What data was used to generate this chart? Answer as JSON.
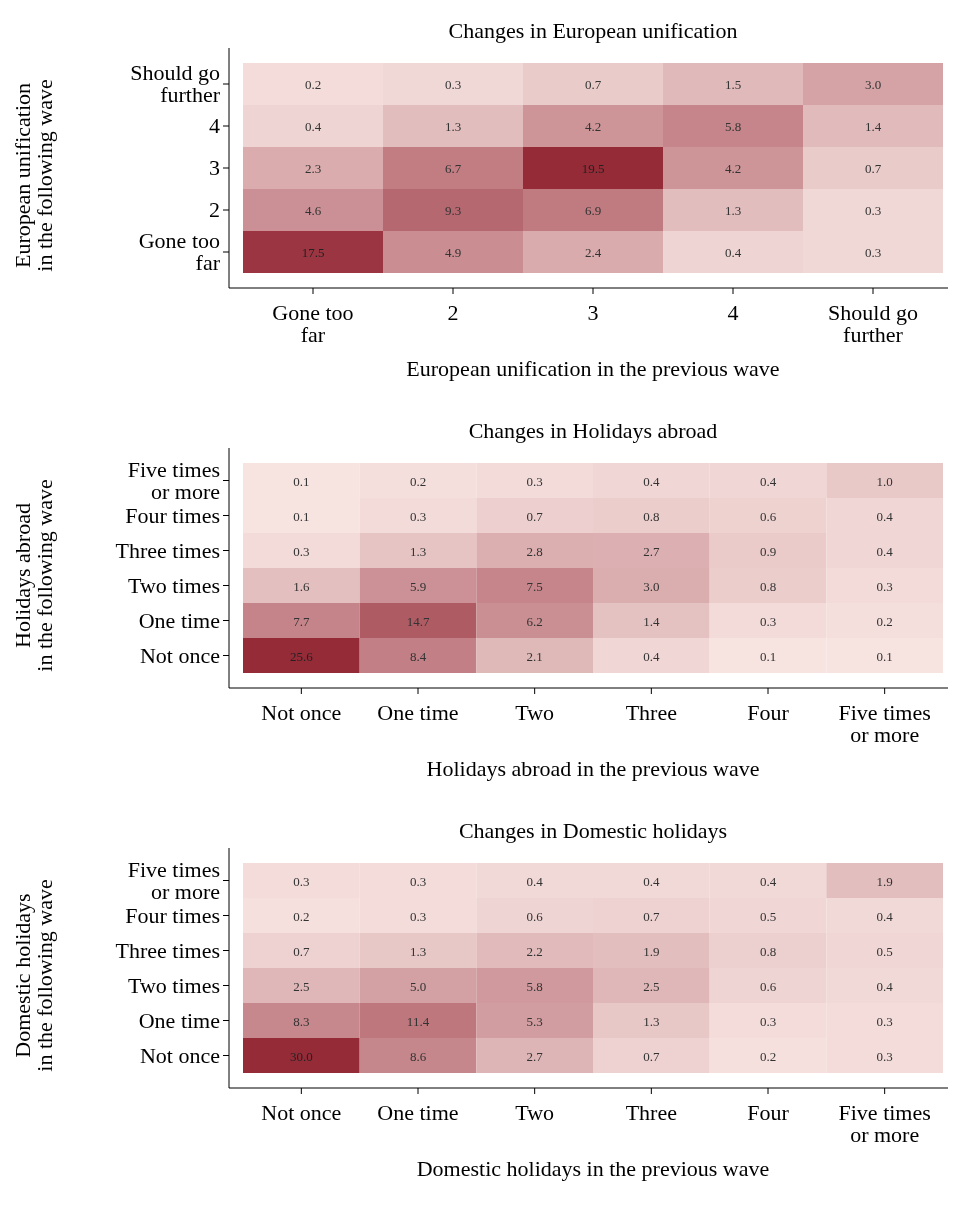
{
  "chart_data": [
    {
      "type": "heatmap",
      "title": "Changes in European unification",
      "xlabel": "European unification in the previous wave",
      "ylabel": "European unification\nin the following wave",
      "color": "#962b38",
      "categories": [
        "Gone too far",
        "2",
        "3",
        "4",
        "Should go further"
      ],
      "y_categories": [
        "Should go further",
        "4",
        "3",
        "2",
        "Gone too far"
      ],
      "cells": [
        [
          0.2,
          0.3,
          0.7,
          1.5,
          3.0
        ],
        [
          0.4,
          1.3,
          4.2,
          5.8,
          1.4
        ],
        [
          2.3,
          6.7,
          19.5,
          4.2,
          0.7
        ],
        [
          4.6,
          9.3,
          6.9,
          1.3,
          0.3
        ],
        [
          17.5,
          4.9,
          2.4,
          0.4,
          0.3
        ]
      ],
      "cell_labels": [
        [
          "0.2",
          "0.3",
          "0.7",
          "1.5",
          "3.0"
        ],
        [
          "0.4",
          "1.3",
          "4.2",
          "5.8",
          "1.4"
        ],
        [
          "2.3",
          "6.7",
          "19.5",
          "4.2",
          "0.7"
        ],
        [
          "4.6",
          "9.3",
          "6.9",
          "1.3",
          "0.3"
        ],
        [
          "17.5",
          "4.9",
          "2.4",
          "0.4",
          "0.3"
        ]
      ]
    },
    {
      "type": "heatmap",
      "title": "Changes in Holidays abroad",
      "xlabel": "Holidays abroad in the previous wave",
      "ylabel": "Holidays abroad\nin the following wave",
      "color": "#962b38",
      "categories": [
        "Not once",
        "One time",
        "Two",
        "Three",
        "Four",
        "Five times or more"
      ],
      "y_categories": [
        "Five times or more",
        "Four times",
        "Three times",
        "Two times",
        "One time",
        "Not once"
      ],
      "cells": [
        [
          0.1,
          0.2,
          0.3,
          0.4,
          0.4,
          1.0
        ],
        [
          0.1,
          0.3,
          0.7,
          0.8,
          0.6,
          0.4
        ],
        [
          0.3,
          1.3,
          2.8,
          2.7,
          0.9,
          0.4
        ],
        [
          1.6,
          5.9,
          7.5,
          3.0,
          0.8,
          0.3
        ],
        [
          7.7,
          14.7,
          6.2,
          1.4,
          0.3,
          0.2
        ],
        [
          25.6,
          8.4,
          2.1,
          0.4,
          0.1,
          0.1
        ]
      ],
      "cell_labels": [
        [
          "0.1",
          "0.2",
          "0.3",
          "0.4",
          "0.4",
          "1.0"
        ],
        [
          "0.1",
          "0.3",
          "0.7",
          "0.8",
          "0.6",
          "0.4"
        ],
        [
          "0.3",
          "1.3",
          "2.8",
          "2.7",
          "0.9",
          "0.4"
        ],
        [
          "1.6",
          "5.9",
          "7.5",
          "3.0",
          "0.8",
          "0.3"
        ],
        [
          "7.7",
          "14.7",
          "6.2",
          "1.4",
          "0.3",
          "0.2"
        ],
        [
          "25.6",
          "8.4",
          "2.1",
          "0.4",
          "0.1",
          "0.1"
        ]
      ]
    },
    {
      "type": "heatmap",
      "title": "Changes in Domestic holidays",
      "xlabel": "Domestic holidays in the previous wave",
      "ylabel": "Domestic holidays\nin the following wave",
      "color": "#962b38",
      "categories": [
        "Not once",
        "One time",
        "Two",
        "Three",
        "Four",
        "Five times or more"
      ],
      "y_categories": [
        "Five times or more",
        "Four times",
        "Three times",
        "Two times",
        "One time",
        "Not once"
      ],
      "cells": [
        [
          0.3,
          0.3,
          0.4,
          0.4,
          0.4,
          1.9
        ],
        [
          0.2,
          0.3,
          0.6,
          0.7,
          0.5,
          0.4
        ],
        [
          0.7,
          1.3,
          2.2,
          1.9,
          0.8,
          0.5
        ],
        [
          2.5,
          5.0,
          5.8,
          2.5,
          0.6,
          0.4
        ],
        [
          8.3,
          11.4,
          5.3,
          1.3,
          0.3,
          0.3
        ],
        [
          30.0,
          8.6,
          2.7,
          0.7,
          0.2,
          0.3
        ]
      ],
      "cell_labels": [
        [
          "0.3",
          "0.3",
          "0.4",
          "0.4",
          "0.4",
          "1.9"
        ],
        [
          "0.2",
          "0.3",
          "0.6",
          "0.7",
          "0.5",
          "0.4"
        ],
        [
          "0.7",
          "1.3",
          "2.2",
          "1.9",
          "0.8",
          "0.5"
        ],
        [
          "2.5",
          "5.0",
          "5.8",
          "2.5",
          "0.6",
          "0.4"
        ],
        [
          "8.3",
          "11.4",
          "5.3",
          "1.3",
          "0.3",
          "0.3"
        ],
        [
          "30.0",
          "8.6",
          "2.7",
          "0.7",
          "0.2",
          "0.3"
        ]
      ]
    }
  ]
}
